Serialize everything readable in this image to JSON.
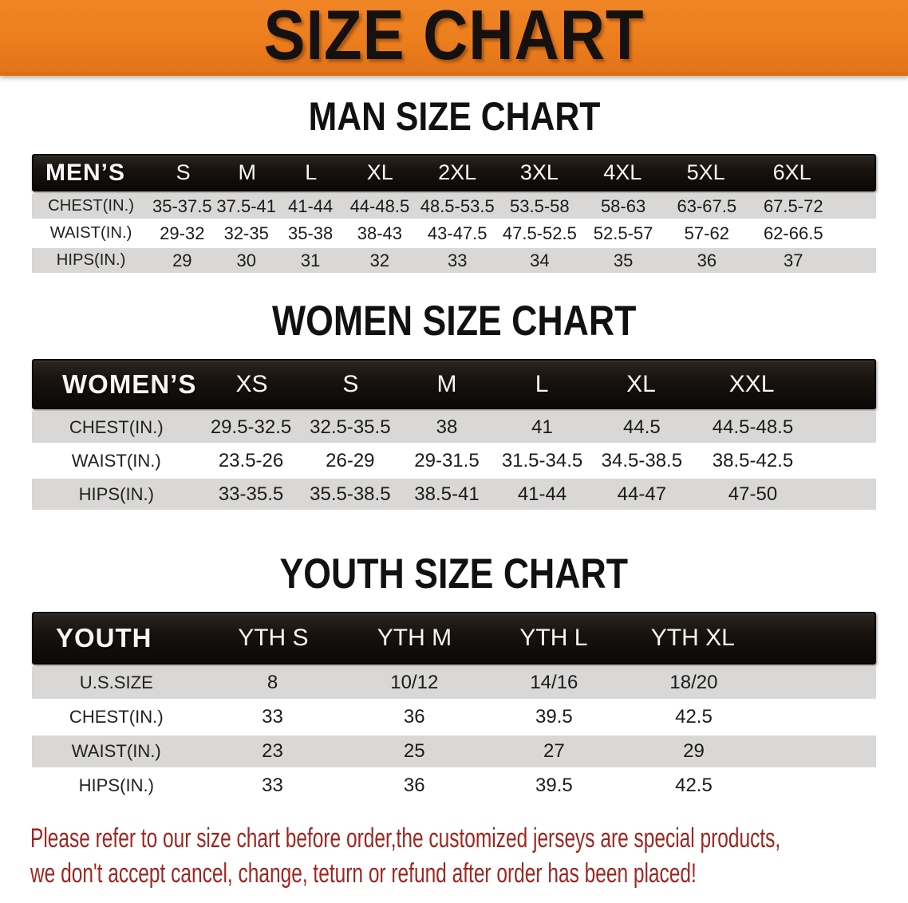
{
  "banner": {
    "title": "SIZE CHART",
    "bg_color": "#ec7e1d",
    "text_color": "#141110"
  },
  "colors": {
    "header_bar_black": "#18130f",
    "row_gray": "#d9d8d6",
    "row_white": "#ffffff",
    "disclaimer_red": "#9e2620"
  },
  "chart_data": [
    {
      "type": "table",
      "title": "MAN SIZE CHART",
      "header_label": "MEN’S",
      "columns": [
        "S",
        "M",
        "L",
        "XL",
        "2XL",
        "3XL",
        "4XL",
        "5XL",
        "6XL"
      ],
      "rows": [
        {
          "label": "CHEST(IN.)",
          "values": [
            "35-37.5",
            "37.5-41",
            "41-44",
            "44-48.5",
            "48.5-53.5",
            "53.5-58",
            "58-63",
            "63-67.5",
            "67.5-72"
          ]
        },
        {
          "label": "WAIST(IN.)",
          "values": [
            "29-32",
            "32-35",
            "35-38",
            "38-43",
            "43-47.5",
            "47.5-52.5",
            "52.5-57",
            "57-62",
            "62-66.5"
          ]
        },
        {
          "label": "HIPS(IN.)",
          "values": [
            "29",
            "30",
            "31",
            "32",
            "33",
            "34",
            "35",
            "36",
            "37"
          ]
        }
      ]
    },
    {
      "type": "table",
      "title": "WOMEN SIZE CHART",
      "header_label": "WOMEN’S",
      "columns": [
        "XS",
        "S",
        "M",
        "L",
        "XL",
        "XXL"
      ],
      "rows": [
        {
          "label": "CHEST(IN.)",
          "values": [
            "29.5-32.5",
            "32.5-35.5",
            "38",
            "41",
            "44.5",
            "44.5-48.5"
          ]
        },
        {
          "label": "WAIST(IN.)",
          "values": [
            "23.5-26",
            "26-29",
            "29-31.5",
            "31.5-34.5",
            "34.5-38.5",
            "38.5-42.5"
          ]
        },
        {
          "label": "HIPS(IN.)",
          "values": [
            "33-35.5",
            "35.5-38.5",
            "38.5-41",
            "41-44",
            "44-47",
            "47-50"
          ]
        }
      ]
    },
    {
      "type": "table",
      "title": "YOUTH SIZE CHART",
      "header_label": "YOUTH",
      "columns": [
        "YTH S",
        "YTH M",
        "YTH L",
        "YTH XL"
      ],
      "rows": [
        {
          "label": "U.S.SIZE",
          "values": [
            "8",
            "10/12",
            "14/16",
            "18/20"
          ]
        },
        {
          "label": "CHEST(IN.)",
          "values": [
            "33",
            "36",
            "39.5",
            "42.5"
          ]
        },
        {
          "label": "WAIST(IN.)",
          "values": [
            "23",
            "25",
            "27",
            "29"
          ]
        },
        {
          "label": "HIPS(IN.)",
          "values": [
            "33",
            "36",
            "39.5",
            "42.5"
          ]
        }
      ]
    }
  ],
  "disclaimer": {
    "lines": [
      "Please refer to our size chart before order,the customized jerseys are special products,",
      "we don't accept cancel, change, teturn or refund after order has been placed!"
    ]
  }
}
